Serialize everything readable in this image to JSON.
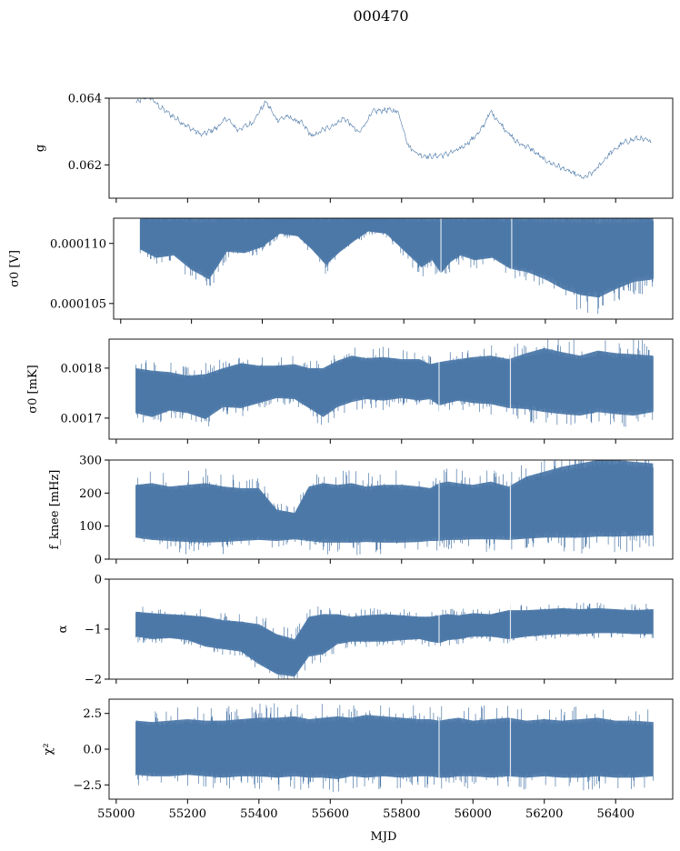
{
  "figure": {
    "title": "000470",
    "shared_xlabel": "MJD"
  },
  "colors": {
    "series": "#4c78a8",
    "axes": "#000000",
    "background": "#ffffff"
  },
  "chart_data": [
    {
      "id": "g",
      "type": "line",
      "ylabel": "g",
      "xlim": [
        54980,
        56560
      ],
      "ylim": [
        0.061,
        0.064
      ],
      "yticks": [
        0.062,
        0.064
      ],
      "ytick_labels": [
        "0.062",
        "0.064"
      ],
      "xticks": [
        55000,
        55200,
        55400,
        55600,
        55800,
        56000,
        56200,
        56400
      ],
      "show_xtick_labels": false,
      "x": [
        55055,
        55090,
        55120,
        55160,
        55200,
        55240,
        55280,
        55310,
        55340,
        55380,
        55420,
        55450,
        55480,
        55520,
        55550,
        55580,
        55610,
        55640,
        55680,
        55720,
        55760,
        55790,
        55820,
        55850,
        55880,
        55920,
        55960,
        55990,
        56020,
        56050,
        56080,
        56120,
        56160,
        56200,
        56240,
        56280,
        56310,
        56340,
        56380,
        56420,
        56460,
        56500
      ],
      "values": [
        0.06385,
        0.0641,
        0.06375,
        0.06345,
        0.06315,
        0.0629,
        0.0631,
        0.0634,
        0.06305,
        0.06325,
        0.0639,
        0.06335,
        0.06345,
        0.06325,
        0.06285,
        0.06305,
        0.0632,
        0.0634,
        0.06295,
        0.0636,
        0.06365,
        0.0636,
        0.06255,
        0.0623,
        0.06225,
        0.0623,
        0.06245,
        0.0627,
        0.063,
        0.0636,
        0.0632,
        0.0627,
        0.0625,
        0.06215,
        0.06195,
        0.06175,
        0.0616,
        0.0618,
        0.0623,
        0.06265,
        0.0628,
        0.0627
      ]
    },
    {
      "id": "sigma0_v",
      "type": "area",
      "ylabel": "σ0 [V]",
      "xlim": [
        54980,
        56560
      ],
      "ylim": [
        0.0001037,
        0.0001121
      ],
      "yticks": [
        0.000105,
        0.00011
      ],
      "ytick_labels": [
        "0.000105",
        "0.000110"
      ],
      "xticks": [
        55000,
        55200,
        55400,
        55600,
        55800,
        56000,
        56200,
        56400
      ],
      "show_xtick_labels": false,
      "x": [
        55055,
        55100,
        55150,
        55200,
        55250,
        55300,
        55350,
        55400,
        55450,
        55500,
        55540,
        55580,
        55620,
        55660,
        55700,
        55750,
        55800,
        55850,
        55880,
        55905,
        55930,
        55960,
        56000,
        56050,
        56100,
        56150,
        56200,
        56250,
        56300,
        56350,
        56400,
        56450,
        56505
      ],
      "upper": [
        0.0001121,
        0.0001121,
        0.0001121,
        0.0001121,
        0.0001121,
        0.0001121,
        0.0001121,
        0.0001121,
        0.0001121,
        0.0001121,
        0.0001121,
        0.0001121,
        0.0001121,
        0.0001121,
        0.0001121,
        0.0001121,
        0.0001121,
        0.0001121,
        0.0001121,
        0.0001121,
        0.0001121,
        0.0001121,
        0.0001121,
        0.0001121,
        0.0001121,
        0.0001121,
        0.0001121,
        0.0001121,
        0.0001121,
        0.0001121,
        0.0001121,
        0.0001121,
        0.0001121
      ],
      "lower": [
        0.0001095,
        0.0001088,
        0.000109,
        0.0001078,
        0.000107,
        0.0001093,
        0.0001092,
        0.0001097,
        0.0001108,
        0.0001106,
        0.0001095,
        0.0001082,
        0.0001093,
        0.0001102,
        0.000111,
        0.0001108,
        0.0001094,
        0.000108,
        0.0001086,
        0.0001075,
        0.0001084,
        0.000109,
        0.0001086,
        0.0001088,
        0.0001079,
        0.0001076,
        0.000107,
        0.0001062,
        0.0001057,
        0.0001055,
        0.0001062,
        0.0001068,
        0.000107
      ]
    },
    {
      "id": "sigma0_mk",
      "type": "area",
      "ylabel": "σ0 [mK]",
      "xlim": [
        54980,
        56560
      ],
      "ylim": [
        0.001658,
        0.001858
      ],
      "yticks": [
        0.0017,
        0.0018
      ],
      "ytick_labels": [
        "0.0017",
        "0.0018"
      ],
      "xticks": [
        55000,
        55200,
        55400,
        55600,
        55800,
        56000,
        56200,
        56400
      ],
      "show_xtick_labels": false,
      "x": [
        55055,
        55100,
        55150,
        55200,
        55250,
        55300,
        55350,
        55400,
        55450,
        55500,
        55540,
        55580,
        55620,
        55660,
        55700,
        55750,
        55800,
        55850,
        55880,
        55905,
        55930,
        55960,
        56000,
        56050,
        56100,
        56150,
        56200,
        56250,
        56300,
        56350,
        56400,
        56450,
        56505
      ],
      "upper": [
        0.0018,
        0.001795,
        0.001792,
        0.001785,
        0.001788,
        0.0018,
        0.00181,
        0.001805,
        0.001805,
        0.001808,
        0.0018,
        0.0018,
        0.001815,
        0.001825,
        0.00182,
        0.001822,
        0.001818,
        0.001818,
        0.001808,
        0.001812,
        0.001815,
        0.001818,
        0.001822,
        0.001825,
        0.001818,
        0.00183,
        0.00184,
        0.001832,
        0.001825,
        0.001835,
        0.00183,
        0.001828,
        0.001825
      ],
      "lower": [
        0.00171,
        0.001702,
        0.001715,
        0.00171,
        0.001698,
        0.001722,
        0.00172,
        0.00173,
        0.00174,
        0.001738,
        0.00172,
        0.001702,
        0.001722,
        0.001732,
        0.001738,
        0.001735,
        0.00174,
        0.001735,
        0.001738,
        0.001725,
        0.00173,
        0.001735,
        0.00173,
        0.001728,
        0.00172,
        0.001718,
        0.001712,
        0.001708,
        0.001705,
        0.001712,
        0.001708,
        0.001705,
        0.001712
      ]
    },
    {
      "id": "fknee",
      "type": "area",
      "ylabel": "f_knee [mHz]",
      "xlim": [
        54980,
        56560
      ],
      "ylim": [
        0,
        300
      ],
      "yticks": [
        0,
        100,
        200,
        300
      ],
      "ytick_labels": [
        "0",
        "100",
        "200",
        "300"
      ],
      "xticks": [
        55000,
        55200,
        55400,
        55600,
        55800,
        56000,
        56200,
        56400
      ],
      "show_xtick_labels": false,
      "x": [
        55055,
        55100,
        55150,
        55200,
        55250,
        55300,
        55350,
        55400,
        55450,
        55500,
        55540,
        55580,
        55620,
        55660,
        55700,
        55750,
        55800,
        55850,
        55880,
        55905,
        55930,
        55960,
        56000,
        56050,
        56100,
        56150,
        56200,
        56250,
        56300,
        56350,
        56400,
        56450,
        56505
      ],
      "upper": [
        225,
        230,
        220,
        225,
        230,
        220,
        215,
        215,
        150,
        140,
        220,
        230,
        225,
        230,
        220,
        225,
        225,
        220,
        215,
        230,
        235,
        230,
        225,
        235,
        220,
        250,
        265,
        280,
        290,
        300,
        300,
        295,
        290
      ],
      "lower": [
        65,
        58,
        55,
        52,
        50,
        52,
        55,
        58,
        55,
        60,
        55,
        50,
        50,
        50,
        52,
        50,
        50,
        52,
        55,
        55,
        58,
        58,
        60,
        60,
        58,
        62,
        65,
        65,
        65,
        68,
        68,
        70,
        72
      ]
    },
    {
      "id": "alpha",
      "type": "area",
      "ylabel": "α",
      "xlim": [
        54980,
        56560
      ],
      "ylim": [
        -2,
        0
      ],
      "yticks": [
        -2,
        -1,
        0
      ],
      "ytick_labels": [
        "−2",
        "−1",
        "0"
      ],
      "xticks": [
        55000,
        55200,
        55400,
        55600,
        55800,
        56000,
        56200,
        56400
      ],
      "show_xtick_labels": false,
      "x": [
        55055,
        55100,
        55150,
        55200,
        55250,
        55300,
        55350,
        55400,
        55450,
        55500,
        55540,
        55580,
        55620,
        55660,
        55700,
        55750,
        55800,
        55850,
        55880,
        55905,
        55930,
        55960,
        56000,
        56050,
        56100,
        56150,
        56200,
        56250,
        56300,
        56350,
        56400,
        56450,
        56505
      ],
      "upper": [
        -0.65,
        -0.68,
        -0.7,
        -0.72,
        -0.75,
        -0.82,
        -0.85,
        -0.9,
        -1.1,
        -1.2,
        -0.75,
        -0.7,
        -0.7,
        -0.75,
        -0.72,
        -0.7,
        -0.72,
        -0.75,
        -0.75,
        -0.72,
        -0.7,
        -0.72,
        -0.68,
        -0.7,
        -0.62,
        -0.62,
        -0.6,
        -0.58,
        -0.6,
        -0.58,
        -0.6,
        -0.62,
        -0.6
      ],
      "lower": [
        -1.15,
        -1.2,
        -1.18,
        -1.22,
        -1.35,
        -1.4,
        -1.45,
        -1.7,
        -1.9,
        -1.95,
        -1.55,
        -1.5,
        -1.3,
        -1.25,
        -1.25,
        -1.25,
        -1.22,
        -1.2,
        -1.25,
        -1.28,
        -1.22,
        -1.2,
        -1.15,
        -1.15,
        -1.2,
        -1.15,
        -1.12,
        -1.1,
        -1.1,
        -1.08,
        -1.08,
        -1.1,
        -1.1
      ]
    },
    {
      "id": "chi2",
      "type": "area",
      "ylabel": "χ²",
      "xlabel": "MJD",
      "xlim": [
        54980,
        56560
      ],
      "ylim": [
        -3.5,
        3.5
      ],
      "yticks": [
        -2.5,
        0.0,
        2.5
      ],
      "ytick_labels": [
        "−2.5",
        "0.0",
        "2.5"
      ],
      "xticks": [
        55000,
        55200,
        55400,
        55600,
        55800,
        56000,
        56200,
        56400
      ],
      "xtick_labels": [
        "55000",
        "55200",
        "55400",
        "55600",
        "55800",
        "56000",
        "56200",
        "56400"
      ],
      "show_xtick_labels": true,
      "x": [
        55055,
        55100,
        55150,
        55200,
        55250,
        55300,
        55350,
        55400,
        55450,
        55500,
        55540,
        55580,
        55620,
        55660,
        55700,
        55750,
        55800,
        55850,
        55880,
        55905,
        55930,
        55960,
        56000,
        56050,
        56100,
        56150,
        56200,
        56250,
        56300,
        56350,
        56400,
        56450,
        56505
      ],
      "upper": [
        2.0,
        1.9,
        2.0,
        2.1,
        2.0,
        2.0,
        2.1,
        2.2,
        2.2,
        2.3,
        2.1,
        2.2,
        2.3,
        2.2,
        2.4,
        2.3,
        2.2,
        2.1,
        2.1,
        2.0,
        2.1,
        2.2,
        2.0,
        2.1,
        2.2,
        2.0,
        2.1,
        2.0,
        2.1,
        2.2,
        2.0,
        2.0,
        1.9
      ],
      "lower": [
        -1.8,
        -1.9,
        -1.9,
        -1.8,
        -1.9,
        -2.0,
        -1.9,
        -1.9,
        -2.0,
        -1.9,
        -2.0,
        -2.0,
        -2.1,
        -1.9,
        -2.0,
        -1.9,
        -2.0,
        -1.9,
        -1.9,
        -2.0,
        -2.0,
        -1.9,
        -1.9,
        -2.0,
        -1.9,
        -2.0,
        -1.9,
        -2.0,
        -2.0,
        -1.9,
        -2.0,
        -2.0,
        -1.9
      ]
    }
  ]
}
